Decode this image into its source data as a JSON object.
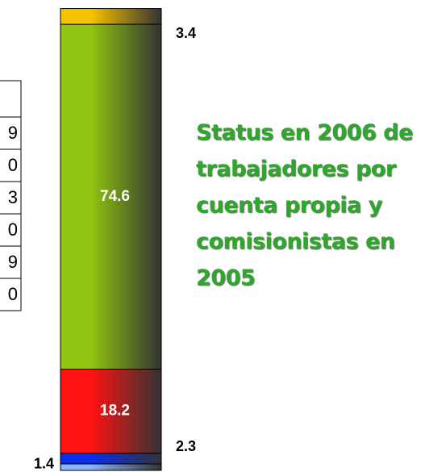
{
  "chart_data": {
    "type": "stacked_bar",
    "title": "Status en 2006 de trabajadores por cuenta propia y comisionistas en 2005",
    "values": [
      1.4,
      2.3,
      18.2,
      74.6,
      3.4
    ],
    "colors": [
      "#8ab4f8",
      "#0a2cf0",
      "#ff1212",
      "#8fc410",
      "#f7c200"
    ],
    "ylim": [
      0,
      100
    ]
  },
  "side_table": {
    "cells": [
      "9",
      "0",
      "3",
      "0",
      "9",
      "0"
    ]
  }
}
